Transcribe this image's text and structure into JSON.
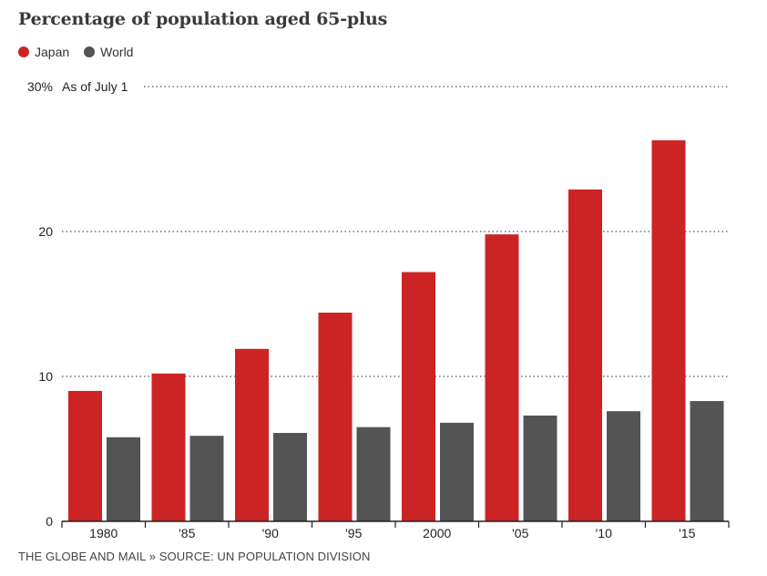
{
  "colors": {
    "Japan": "#cc2424",
    "World": "#545454"
  },
  "chart_data": {
    "type": "bar",
    "title": "Percentage of population aged 65-plus",
    "note": "As of July 1",
    "categories": [
      "1980",
      "'85",
      "'90",
      "'95",
      "2000",
      "'05",
      "'10",
      "'15"
    ],
    "series": [
      {
        "name": "Japan",
        "values": [
          9.0,
          10.2,
          11.9,
          14.4,
          17.2,
          19.8,
          22.9,
          26.3
        ]
      },
      {
        "name": "World",
        "values": [
          5.8,
          5.9,
          6.1,
          6.5,
          6.8,
          7.3,
          7.6,
          8.3
        ]
      }
    ],
    "yticks": [
      {
        "value": 0,
        "label": "0"
      },
      {
        "value": 10,
        "label": "10"
      },
      {
        "value": 20,
        "label": "20"
      },
      {
        "value": 30,
        "label": "30%"
      }
    ],
    "ylim": [
      0,
      30
    ],
    "grid": true,
    "legend_position": "top-left"
  },
  "footer": "THE GLOBE AND MAIL » SOURCE: UN POPULATION DIVISION"
}
